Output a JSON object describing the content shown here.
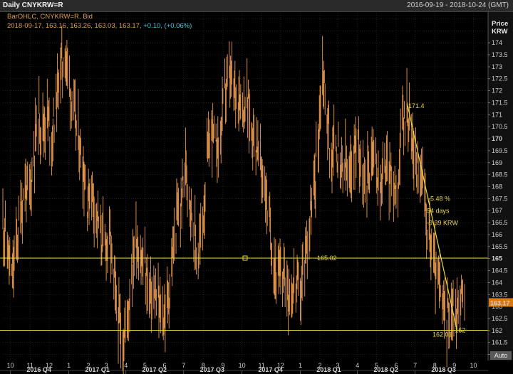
{
  "title": "Daily CNYKRW=R",
  "date_range": "2016-09-19 - 2018-10-24 (GMT)",
  "legend": {
    "series_label": "BarOHLC, CNYKRW=R, Bid",
    "values_text": "2018-09-17, 163.16, 163.26, 163.03, 163.17,",
    "change_text": "+0.10, (+0.06%)"
  },
  "axis": {
    "header1": "Price",
    "header2": "KRW",
    "auto_label": "Auto"
  },
  "colors": {
    "bars": "#e89a4c",
    "lines": "#e6dc3c",
    "last_price_bg": "#d97a10"
  },
  "chart_data": {
    "type": "bar",
    "subtype": "ohlc",
    "instrument": "CNYKRW=R",
    "ylim": [
      160.75,
      175.25
    ],
    "yticks": [
      161,
      161.5,
      162,
      162.5,
      163,
      163.5,
      164,
      164.5,
      165,
      165.5,
      166,
      166.5,
      167,
      167.5,
      168,
      168.5,
      169,
      169.5,
      170,
      170.5,
      171,
      171.5,
      172,
      172.5,
      173,
      173.5,
      174,
      174.5,
      175
    ],
    "ytick_labels": [
      "161",
      "161.5",
      "162",
      "162.5",
      "163",
      "163.5",
      "164",
      "164.5",
      "165",
      "165.5",
      "166",
      "166.5",
      "167",
      "167.5",
      "168",
      "168.5",
      "169",
      "169.5",
      "170",
      "170.5",
      "171",
      "171.5",
      "172",
      "172.5",
      "173",
      "173.5",
      "174",
      "174.5",
      "175"
    ],
    "bold_ticks": [
      "165",
      "170"
    ],
    "x_month_labels": [
      "10",
      "11",
      "12",
      "1",
      "2",
      "3",
      "4",
      "5",
      "6",
      "7",
      "8",
      "9",
      "10",
      "11",
      "12",
      "1",
      "2",
      "3",
      "4",
      "5",
      "6",
      "7",
      "8",
      "9",
      "10"
    ],
    "x_period_labels": [
      "2016 Q4",
      "2017 Q1",
      "2017 Q2",
      "2017 Q3",
      "2017 Q4",
      "2018 Q1",
      "2018 Q2",
      "2018 Q3"
    ],
    "last_price": "163.17",
    "horizontal_lines": [
      {
        "value": 165.02,
        "label": "165.02"
      },
      {
        "value": 162.01,
        "label": "162.01"
      }
    ],
    "trend_measure": {
      "start": 171.4,
      "start_label": "171.4",
      "end": 162.01,
      "end_label": "162",
      "pct": "-5.48 %",
      "days": "54 days",
      "amount": "-9.39 KRW"
    },
    "approx_close_path": [
      [
        "2016-09-19",
        166.5
      ],
      [
        "2016-09-26",
        165.5
      ],
      [
        "2016-10-03",
        164.0
      ],
      [
        "2016-10-10",
        165.5
      ],
      [
        "2016-10-17",
        167.0
      ],
      [
        "2016-10-24",
        168.0
      ],
      [
        "2016-10-31",
        167.5
      ],
      [
        "2016-11-07",
        169.5
      ],
      [
        "2016-11-14",
        171.0
      ],
      [
        "2016-11-21",
        170.5
      ],
      [
        "2016-11-28",
        171.0
      ],
      [
        "2016-12-05",
        170.0
      ],
      [
        "2016-12-12",
        171.5
      ],
      [
        "2016-12-19",
        173.0
      ],
      [
        "2016-12-26",
        173.5
      ],
      [
        "2017-01-02",
        172.5
      ],
      [
        "2017-01-09",
        171.0
      ],
      [
        "2017-01-16",
        170.0
      ],
      [
        "2017-01-23",
        169.0
      ],
      [
        "2017-01-30",
        167.5
      ],
      [
        "2017-02-06",
        168.0
      ],
      [
        "2017-02-13",
        167.0
      ],
      [
        "2017-02-20",
        166.0
      ],
      [
        "2017-02-27",
        165.5
      ],
      [
        "2017-03-06",
        166.0
      ],
      [
        "2017-03-13",
        164.0
      ],
      [
        "2017-03-20",
        162.5
      ],
      [
        "2017-03-27",
        161.5
      ],
      [
        "2017-04-03",
        162.5
      ],
      [
        "2017-04-10",
        164.5
      ],
      [
        "2017-04-17",
        166.0
      ],
      [
        "2017-04-24",
        165.0
      ],
      [
        "2017-05-01",
        164.5
      ],
      [
        "2017-05-08",
        163.5
      ],
      [
        "2017-05-15",
        163.5
      ],
      [
        "2017-05-22",
        163.0
      ],
      [
        "2017-05-29",
        162.5
      ],
      [
        "2017-06-05",
        163.0
      ],
      [
        "2017-06-12",
        164.5
      ],
      [
        "2017-06-19",
        166.5
      ],
      [
        "2017-06-26",
        167.0
      ],
      [
        "2017-07-03",
        169.0
      ],
      [
        "2017-07-10",
        168.0
      ],
      [
        "2017-07-17",
        166.0
      ],
      [
        "2017-07-24",
        165.0
      ],
      [
        "2017-07-31",
        166.5
      ],
      [
        "2017-08-07",
        169.0
      ],
      [
        "2017-08-14",
        170.5
      ],
      [
        "2017-08-21",
        169.5
      ],
      [
        "2017-08-28",
        170.0
      ],
      [
        "2017-09-04",
        172.0
      ],
      [
        "2017-09-11",
        172.5
      ],
      [
        "2017-09-18",
        172.0
      ],
      [
        "2017-09-25",
        172.0
      ],
      [
        "2017-10-02",
        171.5
      ],
      [
        "2017-10-09",
        171.5
      ],
      [
        "2017-10-16",
        170.5
      ],
      [
        "2017-10-23",
        170.0
      ],
      [
        "2017-10-30",
        169.0
      ],
      [
        "2017-11-06",
        168.0
      ],
      [
        "2017-11-13",
        166.5
      ],
      [
        "2017-11-20",
        165.0
      ],
      [
        "2017-11-27",
        164.0
      ],
      [
        "2017-12-04",
        164.5
      ],
      [
        "2017-12-11",
        164.0
      ],
      [
        "2017-12-18",
        163.5
      ],
      [
        "2017-12-25",
        164.0
      ],
      [
        "2018-01-01",
        163.5
      ],
      [
        "2018-01-08",
        165.0
      ],
      [
        "2018-01-15",
        166.5
      ],
      [
        "2018-01-22",
        167.5
      ],
      [
        "2018-01-29",
        170.0
      ],
      [
        "2018-02-05",
        173.0
      ],
      [
        "2018-02-12",
        171.0
      ],
      [
        "2018-02-19",
        169.0
      ],
      [
        "2018-02-26",
        170.0
      ],
      [
        "2018-03-05",
        168.5
      ],
      [
        "2018-03-12",
        169.0
      ],
      [
        "2018-03-19",
        168.0
      ],
      [
        "2018-03-26",
        169.5
      ],
      [
        "2018-04-02",
        170.0
      ],
      [
        "2018-04-09",
        169.0
      ],
      [
        "2018-04-16",
        168.5
      ],
      [
        "2018-04-23",
        169.5
      ],
      [
        "2018-04-30",
        169.0
      ],
      [
        "2018-05-07",
        168.0
      ],
      [
        "2018-05-14",
        169.0
      ],
      [
        "2018-05-21",
        168.5
      ],
      [
        "2018-05-28",
        168.0
      ],
      [
        "2018-06-04",
        168.5
      ],
      [
        "2018-06-11",
        170.5
      ],
      [
        "2018-06-18",
        171.4
      ],
      [
        "2018-06-25",
        170.0
      ],
      [
        "2018-07-02",
        169.0
      ],
      [
        "2018-07-09",
        168.5
      ],
      [
        "2018-07-16",
        167.5
      ],
      [
        "2018-07-23",
        166.0
      ],
      [
        "2018-07-30",
        165.0
      ],
      [
        "2018-08-06",
        164.0
      ],
      [
        "2018-08-13",
        163.0
      ],
      [
        "2018-08-20",
        162.5
      ],
      [
        "2018-08-27",
        163.0
      ],
      [
        "2018-09-03",
        162.5
      ],
      [
        "2018-09-10",
        163.5
      ],
      [
        "2018-09-17",
        163.17
      ]
    ]
  }
}
